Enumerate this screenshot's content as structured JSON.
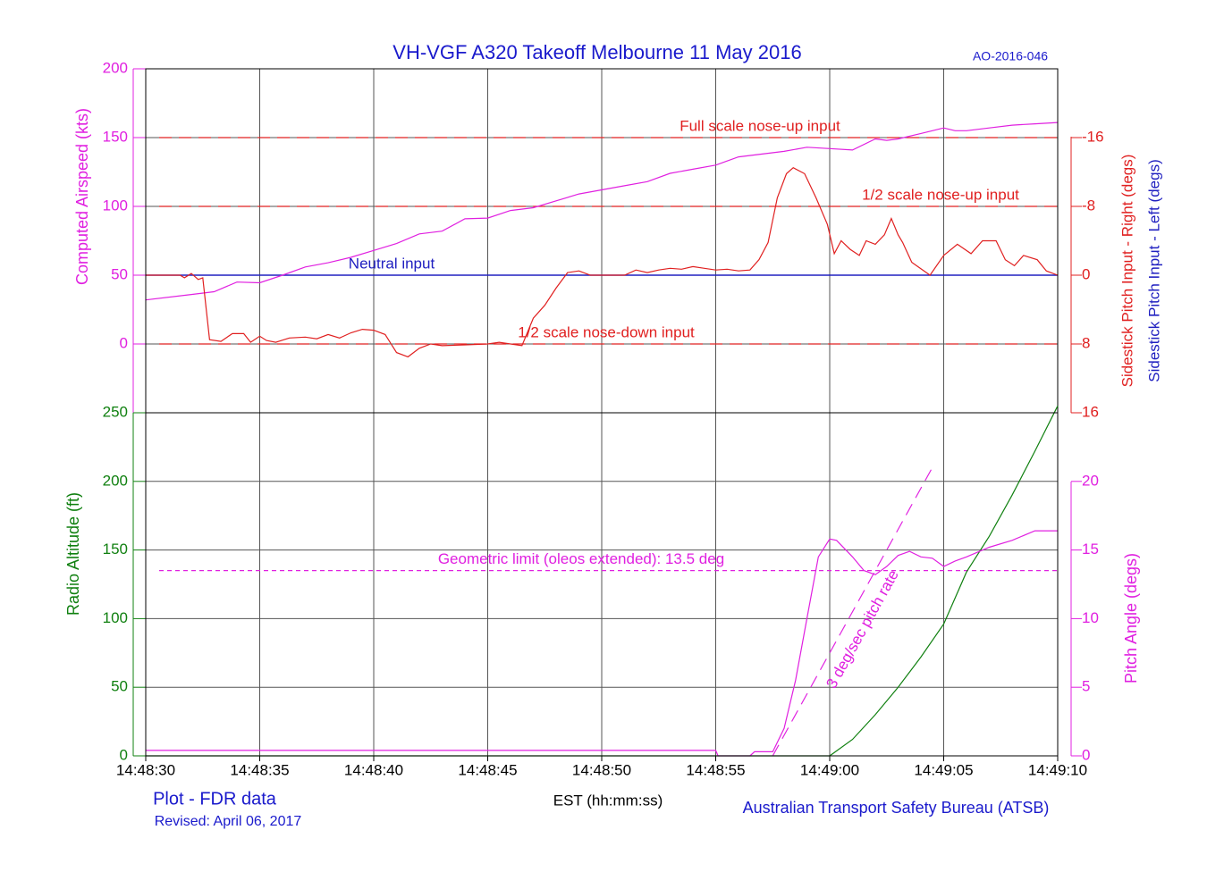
{
  "chart_data": [
    {
      "type": "line",
      "title": "VH-VGF A320 Takeoff Melbourne 11 May 2016",
      "ref_id": "AO-2016-046",
      "ylabel": "Computed Airspeed (kts)",
      "y2label": "Sidestick Pitch Input - Right (degs)",
      "y2label_2": "Sidestick Pitch Input - Left (degs)",
      "xlim": [
        0,
        40
      ],
      "xticks": [
        0,
        5,
        10,
        15,
        20,
        25,
        30,
        35,
        40
      ],
      "ylim": [
        -50,
        200
      ],
      "yticks": [
        0,
        50,
        100,
        150,
        200
      ],
      "ycolor": "#e020e0",
      "y2lim": [
        16,
        -24
      ],
      "y2ticks": [
        -16,
        -8,
        0,
        8,
        16
      ],
      "y2color": "#e02020",
      "grid": true,
      "series": [
        {
          "color": "#e020e0",
          "axis": "y",
          "x": [
            0,
            2,
            3,
            4,
            5,
            6,
            7,
            8,
            9,
            10,
            11,
            12,
            13,
            14,
            15,
            16,
            17,
            18,
            19,
            20,
            21,
            22,
            23,
            24,
            25,
            26,
            27,
            28,
            29,
            30,
            31,
            32,
            32.5,
            33,
            34,
            35,
            35.5,
            36,
            37,
            38,
            39,
            40
          ],
          "values": [
            32,
            36,
            38,
            45,
            44.5,
            50,
            56,
            59,
            63,
            68,
            73,
            80,
            82,
            91,
            91.5,
            97,
            99,
            104,
            109,
            112,
            115,
            118,
            124,
            127,
            130,
            136,
            138,
            140,
            143,
            142,
            141,
            149,
            148,
            149,
            153,
            157,
            155,
            155,
            157,
            159,
            160,
            161
          ]
        },
        {
          "color": "#e02020",
          "axis": "y2",
          "x": [
            0,
            1.5,
            1.7,
            2,
            2.3,
            2.5,
            2.8,
            3.3,
            3.8,
            4.3,
            4.6,
            5,
            5.3,
            5.7,
            6.3,
            7,
            7.5,
            8,
            8.5,
            9,
            9.5,
            10,
            10.5,
            11,
            11.5,
            12,
            12.5,
            13,
            14,
            15,
            15.5,
            16,
            16.5,
            17,
            17.5,
            18,
            18.5,
            19,
            19.5,
            20,
            21,
            21.5,
            22,
            22.5,
            23,
            23.5,
            24,
            24.5,
            25,
            25.5,
            26,
            26.5,
            26.9,
            27.3,
            27.7,
            28.1,
            28.4,
            28.9,
            29.4,
            29.9,
            30.2,
            30.5,
            30.9,
            31.3,
            31.6,
            32,
            32.4,
            32.7,
            33,
            33.2,
            33.6,
            34.4,
            35,
            35.6,
            36.2,
            36.7,
            37.3,
            37.7,
            38.1,
            38.5,
            39.1,
            39.5,
            40
          ],
          "values": [
            0,
            0,
            0.3,
            -0.2,
            0.5,
            0.3,
            7.5,
            7.7,
            6.8,
            6.8,
            7.8,
            7.1,
            7.6,
            7.8,
            7.3,
            7.2,
            7.4,
            6.9,
            7.3,
            6.7,
            6.3,
            6.4,
            6.9,
            9,
            9.5,
            8.5,
            8,
            8.2,
            8.1,
            8,
            7.8,
            8,
            8.2,
            5,
            3.5,
            1.5,
            -0.3,
            -0.5,
            0,
            0,
            0,
            -0.6,
            -0.3,
            -0.6,
            -0.8,
            -0.7,
            -1,
            -0.8,
            -0.6,
            -0.7,
            -0.5,
            -0.6,
            -1.8,
            -3.8,
            -9,
            -11.8,
            -12.5,
            -11.8,
            -9,
            -5.9,
            -2.5,
            -4,
            -3,
            -2.3,
            -4,
            -3.6,
            -4.7,
            -6.6,
            -4.7,
            -3.8,
            -1.5,
            0,
            -2.3,
            -3.6,
            -2.5,
            -4,
            -4,
            -1.8,
            -1.1,
            -2.3,
            -1.8,
            -0.5,
            0
          ]
        }
      ],
      "ref_lines": [
        {
          "value": -16,
          "axis": "y2",
          "label": "Full scale nose-up input",
          "color": "#e02020",
          "dashed": true
        },
        {
          "value": -8,
          "axis": "y2",
          "label": "1/2 scale nose-up input",
          "color": "#e02020",
          "dashed": true
        },
        {
          "value": 0,
          "axis": "y2",
          "label": "Neutral input",
          "color": "#2020c0",
          "dashed": false
        },
        {
          "value": 8,
          "axis": "y2",
          "label": "1/2 scale nose-down input",
          "color": "#e02020",
          "dashed": true
        }
      ]
    },
    {
      "type": "line",
      "ylabel": "Radio Altitude (ft)",
      "y2label": "Pitch Angle (degs)",
      "xlabel": "EST (hh:mm:ss)",
      "xlim": [
        0,
        40
      ],
      "xticks": [
        {
          "value": 0,
          "label": "14:48:30"
        },
        {
          "value": 5,
          "label": "14:48:35"
        },
        {
          "value": 10,
          "label": "14:48:40"
        },
        {
          "value": 15,
          "label": "14:48:45"
        },
        {
          "value": 20,
          "label": "14:48:50"
        },
        {
          "value": 25,
          "label": "14:48:55"
        },
        {
          "value": 30,
          "label": "14:49:00"
        },
        {
          "value": 35,
          "label": "14:49:05"
        },
        {
          "value": 40,
          "label": "14:49:10"
        }
      ],
      "ylim": [
        0,
        250
      ],
      "yticks": [
        0,
        50,
        100,
        150,
        200,
        250
      ],
      "ycolor": "#108010",
      "y2lim": [
        0,
        25
      ],
      "y2ticks": [
        0,
        5,
        10,
        15,
        20
      ],
      "y2color": "#e020e0",
      "grid": true,
      "series": [
        {
          "color": "#108010",
          "axis": "y",
          "x": [
            0,
            30,
            31,
            32,
            33,
            34,
            35,
            36,
            37,
            38,
            39,
            40
          ],
          "values": [
            0,
            0,
            12,
            30,
            50,
            72,
            96,
            134,
            160,
            190,
            222,
            255
          ]
        },
        {
          "color": "#e020e0",
          "axis": "y2",
          "x": [
            0,
            25,
            25.1,
            26.5,
            26.7,
            27.5,
            28,
            28.5,
            29,
            29.5,
            30,
            30.3,
            31,
            31.5,
            32,
            32.5,
            33,
            33.5,
            34,
            34.5,
            35,
            35.5,
            36,
            37,
            38,
            39,
            40
          ],
          "values": [
            0.4,
            0.4,
            0,
            0,
            0.3,
            0.3,
            2,
            5.5,
            10,
            14.5,
            15.8,
            15.7,
            14.5,
            13.5,
            13.2,
            13.8,
            14.6,
            14.9,
            14.5,
            14.4,
            13.8,
            14.2,
            14.5,
            15.2,
            15.7,
            16.4,
            16.4
          ]
        }
      ],
      "ref_lines": [
        {
          "value": 13.5,
          "axis": "y2",
          "label": "Geometric limit (oleos extended): 13.5 deg",
          "color": "#e020e0",
          "dashed": true
        }
      ],
      "rate_line": {
        "label": "3 deg/sec pitch rate",
        "color": "#e020e0",
        "axis": "y2",
        "x": [
          27.5,
          34.5
        ],
        "values": [
          0,
          21
        ]
      }
    }
  ],
  "footer": {
    "plot_label": "Plot - FDR data",
    "revised": "Revised: April 06, 2017",
    "agency": "Australian Transport Safety Bureau (ATSB)"
  }
}
